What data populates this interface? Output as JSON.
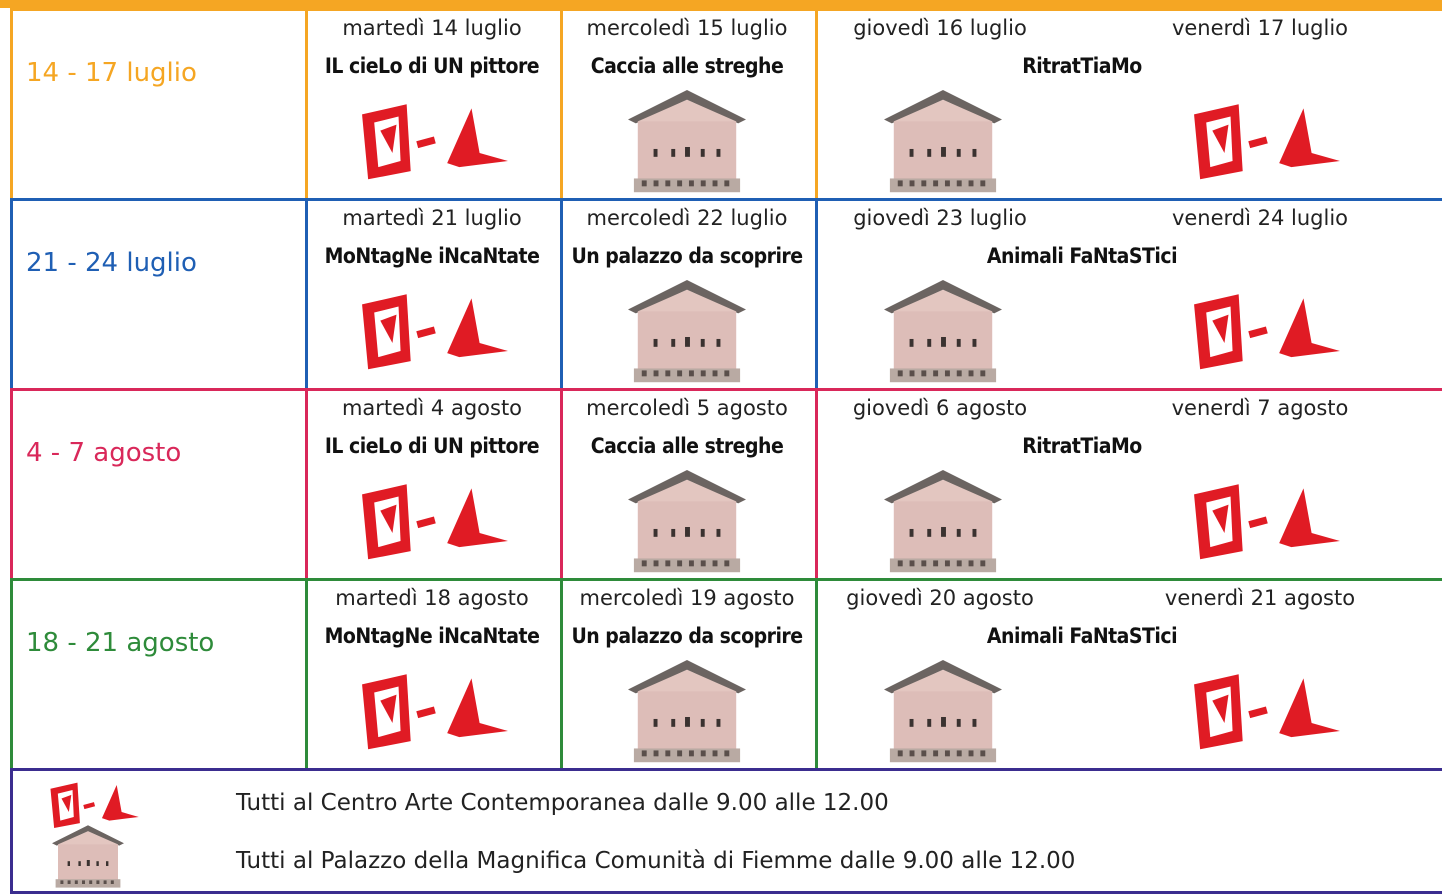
{
  "weeks": [
    {
      "label": "14 - 17 luglio",
      "color": "#f5a623",
      "days": [
        "martedì 14 luglio",
        "mercoledì 15 luglio",
        "giovedì 16 luglio",
        "venerdì 17 luglio"
      ],
      "activities": [
        "IL cieLo di UN pittore",
        "Caccia alle streghe",
        "RitratTiaMo"
      ]
    },
    {
      "label": "21 - 24 luglio",
      "color": "#1f5fb4",
      "days": [
        "martedì 21 luglio",
        "mercoledì 22 luglio",
        "giovedì 23 luglio",
        "venerdì 24 luglio"
      ],
      "activities": [
        "MoNtagNe iNcaNtate",
        "Un palazzo da scoprire",
        "Animali FaNtaSTici"
      ]
    },
    {
      "label": "4 - 7 agosto",
      "color": "#d9285a",
      "days": [
        "martedì 4 agosto",
        "mercoledì 5 agosto",
        "giovedì 6 agosto",
        "venerdì 7 agosto"
      ],
      "activities": [
        "IL cieLo di UN pittore",
        "Caccia alle streghe",
        "RitratTiaMo"
      ]
    },
    {
      "label": "18 - 21 agosto",
      "color": "#2e8b3a",
      "days": [
        "martedì 18 agosto",
        "mercoledì 19 agosto",
        "giovedì 20 agosto",
        "venerdì 21 agosto"
      ],
      "activities": [
        "MoNtagNe iNcaNtate",
        "Un palazzo da scoprire",
        "Animali FaNtaSTici"
      ]
    }
  ],
  "legend": {
    "color": "#3b2d8f",
    "items": [
      "Tutti al Centro Arte Contemporanea dalle 9.00 alle 12.00",
      "Tutti al Palazzo della Magnifica Comunità di Fiemme dalle 9.00 alle 12.00"
    ]
  }
}
